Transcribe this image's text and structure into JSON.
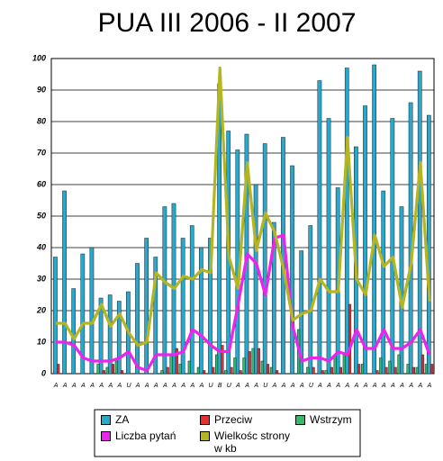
{
  "chart_data": {
    "type": "bar",
    "title": "PUA III 2006 - II 2007",
    "categories": [
      "A",
      "A",
      "A",
      "A",
      "A",
      "A",
      "A",
      "A",
      "U",
      "A",
      "A",
      "A",
      "A",
      "A",
      "A",
      "A",
      "A",
      "U",
      "B",
      "U",
      "A",
      "A",
      "A",
      "U",
      "A",
      "A",
      "A",
      "A",
      "U",
      "A",
      "A",
      "A",
      "A",
      "A",
      "A",
      "A",
      "A",
      "A",
      "A",
      "A",
      "A",
      "A"
    ],
    "ylim": [
      0,
      100
    ],
    "yticks": [
      0,
      10,
      20,
      30,
      40,
      50,
      60,
      70,
      80,
      90,
      100
    ],
    "grid": true,
    "series": [
      {
        "name": "ZA",
        "type": "bar",
        "color": "#2aa7c9",
        "values": [
          37,
          58,
          27,
          38,
          40,
          24,
          25,
          23,
          26,
          35,
          43,
          37,
          53,
          54,
          43,
          47,
          40,
          43,
          92,
          77,
          71,
          76,
          60,
          73,
          48,
          75,
          66,
          39,
          47,
          93,
          81,
          59,
          97,
          72,
          85,
          98,
          58,
          81,
          53,
          86,
          96,
          82
        ]
      },
      {
        "name": "Przeciw",
        "type": "bar",
        "color": "#e53030",
        "values": [
          3,
          0,
          0,
          0,
          0,
          1,
          3,
          1,
          0,
          0,
          0,
          0,
          2,
          8,
          0,
          0,
          1,
          2,
          9,
          2,
          1,
          7,
          8,
          3,
          1,
          0,
          0,
          0,
          2,
          1,
          2,
          2,
          22,
          3,
          0,
          1,
          2,
          2,
          0,
          2,
          6,
          3
        ]
      },
      {
        "name": "Wstrzym",
        "type": "bar",
        "color": "#33bb66",
        "values": [
          0,
          0,
          0,
          0,
          0,
          3,
          2,
          4,
          0,
          0,
          0,
          0,
          1,
          6,
          3,
          4,
          2,
          0,
          6,
          1,
          5,
          5,
          8,
          4,
          2,
          0,
          0,
          14,
          2,
          0,
          1,
          6,
          6,
          0,
          3,
          0,
          5,
          4,
          6,
          3,
          2,
          3
        ]
      },
      {
        "name": "Liczba pytań",
        "type": "line",
        "color": "#ee22ee",
        "values": [
          10,
          10,
          9,
          5,
          4,
          4,
          4,
          5,
          7,
          2,
          1,
          6,
          6,
          6,
          7,
          14,
          12,
          9,
          7,
          7,
          22,
          38,
          35,
          25,
          43,
          44,
          15,
          4,
          5,
          5,
          4,
          7,
          6,
          14,
          8,
          8,
          14,
          8,
          8,
          10,
          14,
          6
        ]
      },
      {
        "name": "Wielkośc strony w kb",
        "type": "line",
        "color": "#b5b522",
        "values": [
          16,
          16,
          11,
          16,
          16,
          22,
          15,
          19,
          13,
          9,
          10,
          32,
          29,
          27,
          31,
          30,
          33,
          32,
          97,
          37,
          27,
          67,
          39,
          51,
          45,
          33,
          17,
          19,
          20,
          30,
          26,
          26,
          75,
          30,
          25,
          44,
          34,
          37,
          21,
          35,
          67,
          23
        ]
      }
    ]
  }
}
